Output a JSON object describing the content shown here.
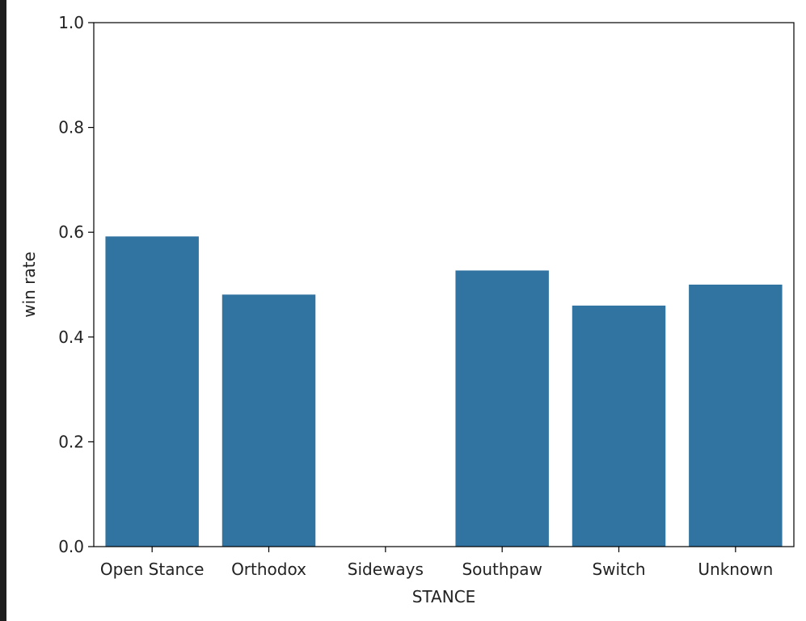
{
  "chart_data": {
    "type": "bar",
    "title": "",
    "xlabel": "STANCE",
    "ylabel": "win rate",
    "categories": [
      "Open Stance",
      "Orthodox",
      "Sideways",
      "Southpaw",
      "Switch",
      "Unknown"
    ],
    "values": [
      0.592,
      0.481,
      0.0,
      0.527,
      0.46,
      0.5
    ],
    "ylim": [
      0,
      1.0
    ],
    "yticks": [
      "0.0",
      "0.2",
      "0.4",
      "0.6",
      "0.8",
      "1.0"
    ],
    "bar_color": "#3274a1",
    "grid": false,
    "legend": "none"
  }
}
